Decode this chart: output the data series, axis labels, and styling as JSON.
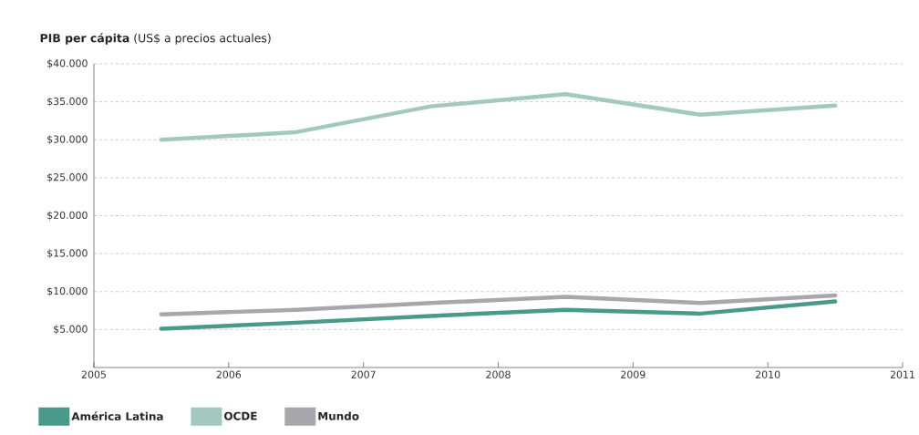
{
  "chart_data": {
    "type": "line",
    "title": "**PIB per cápita** (US$ a precios actuales)",
    "x": [
      2005.5,
      2006.5,
      2007.5,
      2008.5,
      2009.5,
      2010.5
    ],
    "series": [
      {
        "name": "América Latina",
        "color": "#4a9a8a",
        "values": [
          5100,
          5900,
          6800,
          7600,
          7100,
          8700
        ]
      },
      {
        "name": "OCDE",
        "color": "#a3c9bf",
        "values": [
          30000,
          31000,
          34400,
          36000,
          33300,
          34500
        ]
      },
      {
        "name": "Mundo",
        "color": "#a7a7ac",
        "values": [
          7000,
          7600,
          8500,
          9300,
          8500,
          9500
        ]
      }
    ],
    "xlim": [
      2005,
      2011
    ],
    "xticks": [
      2005,
      2006,
      2007,
      2008,
      2009,
      2010,
      2011
    ],
    "ylim": [
      0,
      40000
    ],
    "yticks": [
      {
        "value": 5000,
        "label": "$5.000"
      },
      {
        "value": 10000,
        "label": "$10.000"
      },
      {
        "value": 15000,
        "label": "$15.000"
      },
      {
        "value": 20000,
        "label": "$20.000"
      },
      {
        "value": 25000,
        "label": "$25.000"
      },
      {
        "value": 30000,
        "label": "$30.000"
      },
      {
        "value": 35000,
        "label": "$35.000"
      },
      {
        "value": 40000,
        "label": "$40.000"
      }
    ],
    "grid": "y",
    "legend": "bottom"
  }
}
